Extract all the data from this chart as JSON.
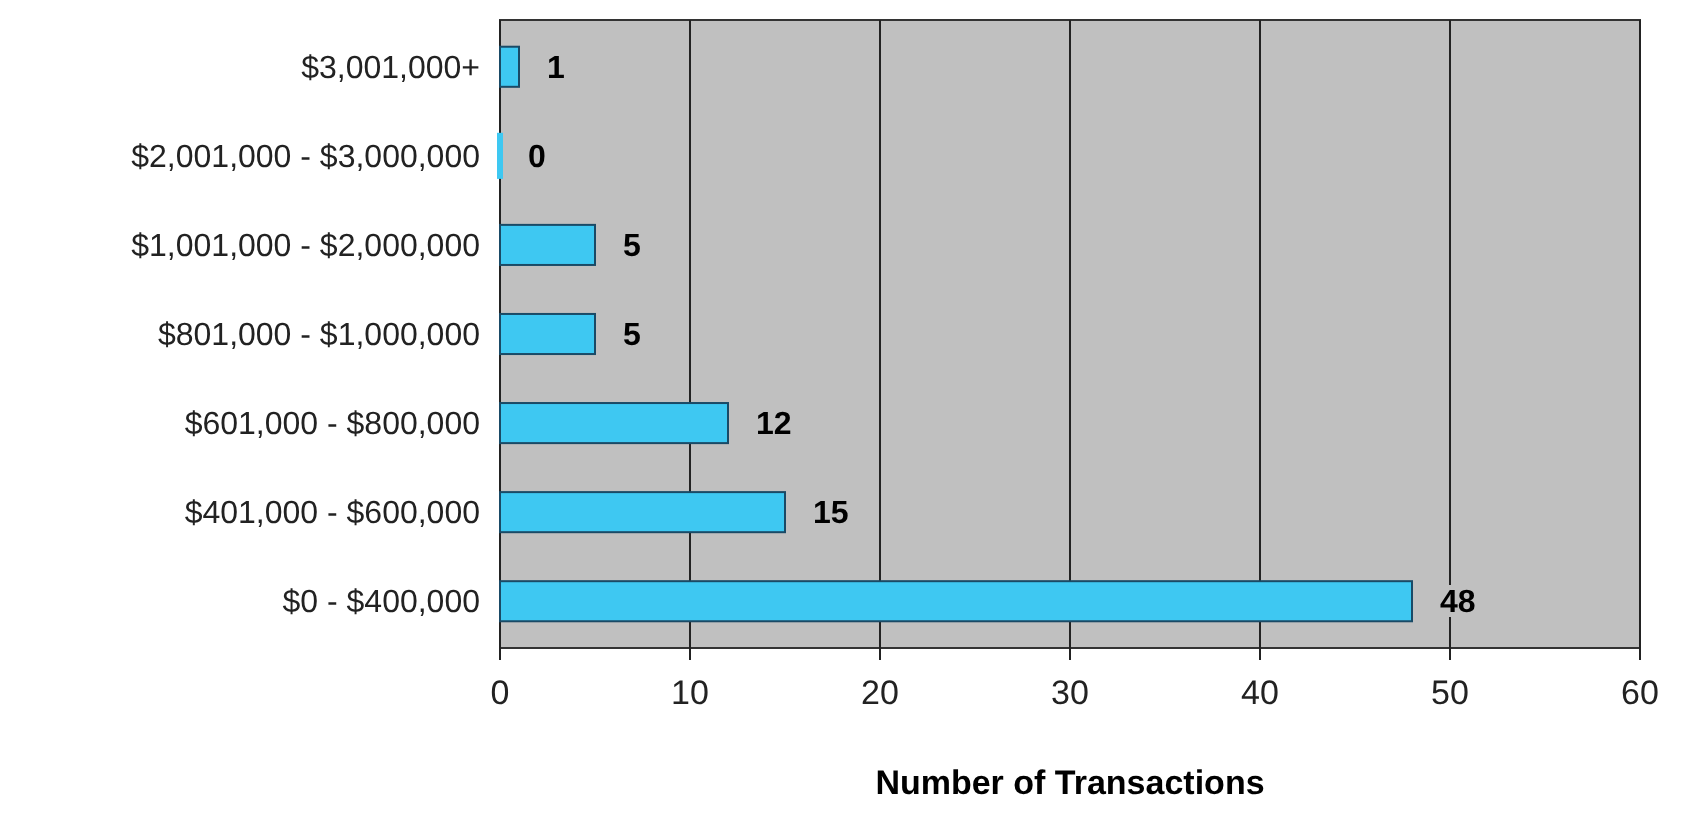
{
  "chart_data": {
    "type": "bar",
    "orientation": "horizontal",
    "xlabel": "Number of Transactions",
    "categories": [
      "$3,001,000+",
      "$2,001,000 - $3,000,000",
      "$1,001,000 - $2,000,000",
      "$801,000 - $1,000,000",
      "$601,000 - $800,000",
      "$401,000 - $600,000",
      "$0 - $400,000"
    ],
    "values": [
      1,
      0,
      5,
      5,
      12,
      15,
      48
    ],
    "color": "#3ec8f2",
    "xlim": [
      0,
      60
    ],
    "xticks": [
      0,
      10,
      20,
      30,
      40,
      50,
      60
    ],
    "grid": "x",
    "data_labels": true
  }
}
